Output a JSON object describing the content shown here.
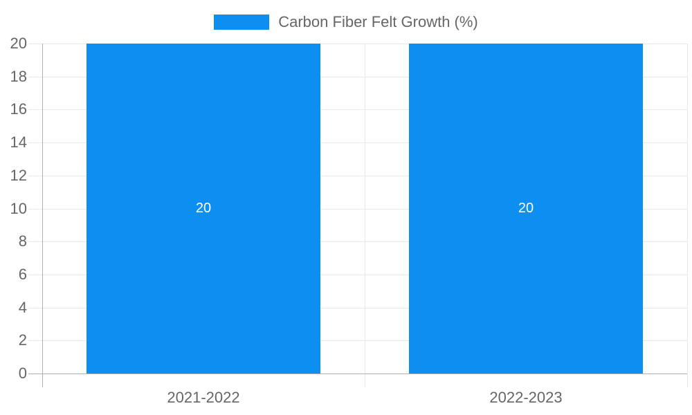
{
  "legend": {
    "label": "Carbon Fiber Felt Growth (%)"
  },
  "colors": {
    "bar": "#0d8ff2",
    "grid_light": "#e8e8e8",
    "axis_line": "#b0b0b0",
    "tick_text": "#666666",
    "legend_text": "#666666",
    "bar_label_text": "#ffffff",
    "background": "#ffffff"
  },
  "chart_data": {
    "type": "bar",
    "title": "Carbon Fiber Felt Growth (%)",
    "categories": [
      "2021-2022",
      "2022-2023"
    ],
    "series": [
      {
        "name": "Carbon Fiber Felt Growth (%)",
        "values": [
          20,
          20
        ]
      }
    ],
    "data_labels": [
      "20",
      "20"
    ],
    "xlabel": "",
    "ylabel": "",
    "ylim": [
      0,
      20
    ],
    "ytick_step": 2,
    "ytick_labels": [
      "0",
      "2",
      "4",
      "6",
      "8",
      "10",
      "12",
      "14",
      "16",
      "18",
      "20"
    ],
    "grid": true,
    "legend_position": "top-center"
  }
}
